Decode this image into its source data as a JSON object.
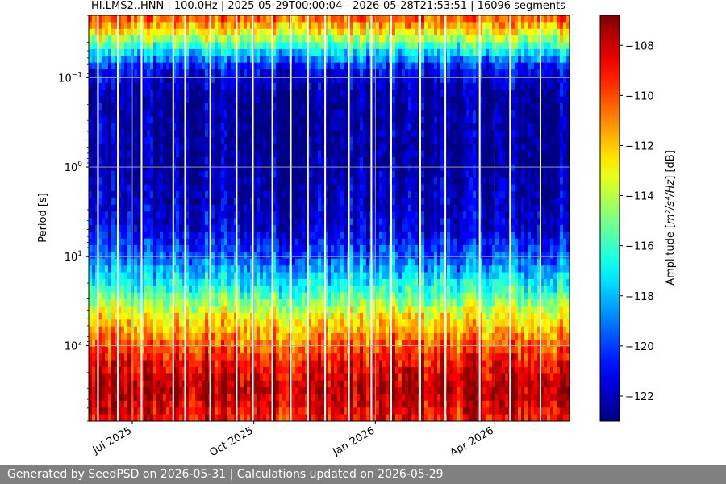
{
  "chart_data": {
    "type": "heatmap",
    "title": "HI.LMS2..HNN | 100.0Hz | 2025-05-29T00:00:04 - 2026-05-28T21:53:51 | 16096 segments",
    "xlabel": "",
    "ylabel": "Period [s]",
    "x_start": "2025-05-29",
    "x_end": "2026-05-28",
    "x_ticks": [
      {
        "date": "2025-07-01",
        "label": "Jul 2025"
      },
      {
        "date": "2025-10-01",
        "label": "Oct 2025"
      },
      {
        "date": "2026-01-01",
        "label": "Jan 2026"
      },
      {
        "date": "2026-04-01",
        "label": "Apr 2026"
      }
    ],
    "y_scale": "log",
    "ylim": [
      0.02,
      700
    ],
    "y_inverted": true,
    "y_ticks": [
      {
        "value": 0.1,
        "base": "10",
        "exp": "−1"
      },
      {
        "value": 1,
        "base": "10",
        "exp": "0"
      },
      {
        "value": 10,
        "base": "10",
        "exp": "1"
      },
      {
        "value": 100,
        "base": "10",
        "exp": "2"
      }
    ],
    "grid": true,
    "colorbar": {
      "label_prefix": "Amplitude [",
      "label_unit": "m²/s⁴/Hz",
      "label_suffix": "] [dB]",
      "range": [
        -123,
        -106.8
      ],
      "ticks": [
        -108,
        -110,
        -112,
        -114,
        -116,
        -118,
        -120,
        -122
      ],
      "colormap": "jet"
    },
    "amplitude_profile": [
      {
        "period": 0.02,
        "db": -110
      },
      {
        "period": 0.03,
        "db": -112.5
      },
      {
        "period": 0.05,
        "db": -117
      },
      {
        "period": 0.08,
        "db": -121
      },
      {
        "period": 0.15,
        "db": -122.5
      },
      {
        "period": 1,
        "db": -122.6
      },
      {
        "period": 5,
        "db": -121.5
      },
      {
        "period": 12,
        "db": -119
      },
      {
        "period": 25,
        "db": -116
      },
      {
        "period": 45,
        "db": -113
      },
      {
        "period": 80,
        "db": -111
      },
      {
        "period": 150,
        "db": -109
      },
      {
        "period": 300,
        "db": -107.5
      },
      {
        "period": 700,
        "db": -109
      }
    ],
    "data_gaps": [
      "2025-06-05",
      "2025-06-20",
      "2025-07-08",
      "2025-08-01",
      "2025-08-10",
      "2025-08-29",
      "2025-09-18",
      "2025-09-30",
      "2025-10-15",
      "2025-10-29",
      "2025-11-11",
      "2025-11-24",
      "2025-12-12",
      "2025-12-29",
      "2026-01-13",
      "2026-02-04",
      "2026-02-23",
      "2026-03-21",
      "2026-04-13",
      "2026-05-06"
    ]
  },
  "footer": {
    "text": "Generated by SeedPSD on 2026-05-31 | Calculations updated on 2026-05-29"
  }
}
